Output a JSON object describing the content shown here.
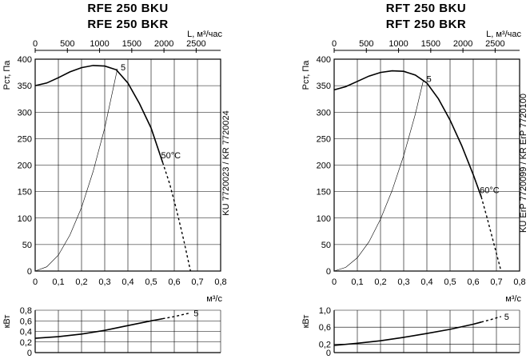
{
  "charts": [
    {
      "title_line1": "RFE 250 BKU",
      "title_line2": "RFE 250 BKR",
      "side_label": "KU 7720023 / KR 7720024",
      "top_axis_label": "L, м³/час",
      "top_ticks": [
        "0",
        "500",
        "1000",
        "1500",
        "2000",
        "2500"
      ],
      "pressure_label": "Pст, Па",
      "x_unit": "м³/с",
      "power_label": "кВт",
      "curve_label": "5",
      "temp_label": "50°C",
      "power_curve_label": "5"
    },
    {
      "title_line1": "RFT 250 BKU",
      "title_line2": "RFT 250 BKR",
      "side_label": "KU ErP 7720099 / KR ErP 7720100",
      "top_axis_label": "L, м³/час",
      "top_ticks": [
        "0",
        "500",
        "1000",
        "1500",
        "2000",
        "2500"
      ],
      "pressure_label": "Pст, Па",
      "x_unit": "м³/с",
      "power_label": "кВт",
      "curve_label": "5",
      "temp_label": "60°C",
      "power_curve_label": "5"
    }
  ],
  "chart_data": [
    {
      "type": "line",
      "x_ticks": [
        "0",
        "0,1",
        "0,2",
        "0,3",
        "0,4",
        "0,5",
        "0,6",
        "0,7",
        "0,8"
      ],
      "y_ticks": [
        "0",
        "50",
        "100",
        "150",
        "200",
        "250",
        "300",
        "350",
        "400"
      ],
      "xlim": [
        0,
        0.8
      ],
      "ylim": [
        0,
        400
      ],
      "pressure_curve": {
        "x": [
          0,
          0.05,
          0.1,
          0.15,
          0.2,
          0.25,
          0.3,
          0.35,
          0.4,
          0.45,
          0.5,
          0.55
        ],
        "y": [
          350,
          355,
          365,
          376,
          384,
          388,
          387,
          380,
          355,
          316,
          270,
          205
        ]
      },
      "pressure_dashed": {
        "x": [
          0.55,
          0.58,
          0.61,
          0.64,
          0.67
        ],
        "y": [
          205,
          165,
          115,
          60,
          0
        ]
      },
      "system_curve": {
        "x": [
          0,
          0.05,
          0.1,
          0.15,
          0.2,
          0.25,
          0.3,
          0.355
        ],
        "y": [
          0,
          8,
          30,
          68,
          120,
          188,
          270,
          382
        ]
      },
      "power_y_ticks": [
        "0",
        "0,2",
        "0,4",
        "0,6",
        "0,8"
      ],
      "power_ylim": [
        0,
        0.8
      ],
      "power_curve": {
        "x": [
          0,
          0.1,
          0.2,
          0.3,
          0.4,
          0.5,
          0.55
        ],
        "y": [
          0.27,
          0.3,
          0.35,
          0.42,
          0.51,
          0.6,
          0.64
        ]
      },
      "power_dashed": {
        "x": [
          0.55,
          0.6,
          0.67
        ],
        "y": [
          0.64,
          0.68,
          0.75
        ]
      }
    },
    {
      "type": "line",
      "x_ticks": [
        "0",
        "0,1",
        "0,2",
        "0,3",
        "0,4",
        "0,5",
        "0,6",
        "0,7",
        "0,8"
      ],
      "y_ticks": [
        "0",
        "50",
        "100",
        "150",
        "200",
        "250",
        "300",
        "350",
        "400"
      ],
      "xlim": [
        0,
        0.8
      ],
      "ylim": [
        0,
        400
      ],
      "pressure_curve": {
        "x": [
          0,
          0.05,
          0.1,
          0.15,
          0.2,
          0.25,
          0.3,
          0.35,
          0.4,
          0.45,
          0.5,
          0.55,
          0.6,
          0.635
        ],
        "y": [
          342,
          348,
          358,
          368,
          375,
          378,
          377,
          370,
          355,
          325,
          285,
          237,
          182,
          140
        ]
      },
      "pressure_dashed": {
        "x": [
          0.635,
          0.66,
          0.69,
          0.72
        ],
        "y": [
          140,
          100,
          50,
          0
        ]
      },
      "system_curve": {
        "x": [
          0,
          0.05,
          0.1,
          0.15,
          0.2,
          0.25,
          0.3,
          0.35,
          0.385
        ],
        "y": [
          0,
          7,
          25,
          55,
          98,
          152,
          218,
          296,
          360
        ]
      },
      "power_y_ticks": [
        "0",
        "0,2",
        "0,6",
        "1,0"
      ],
      "power_ylim": [
        0,
        1.0
      ],
      "power_curve": {
        "x": [
          0,
          0.1,
          0.2,
          0.3,
          0.4,
          0.5,
          0.6,
          0.635
        ],
        "y": [
          0.17,
          0.22,
          0.28,
          0.36,
          0.45,
          0.55,
          0.67,
          0.72
        ]
      },
      "power_dashed": {
        "x": [
          0.635,
          0.67,
          0.72
        ],
        "y": [
          0.72,
          0.77,
          0.85
        ]
      }
    }
  ]
}
